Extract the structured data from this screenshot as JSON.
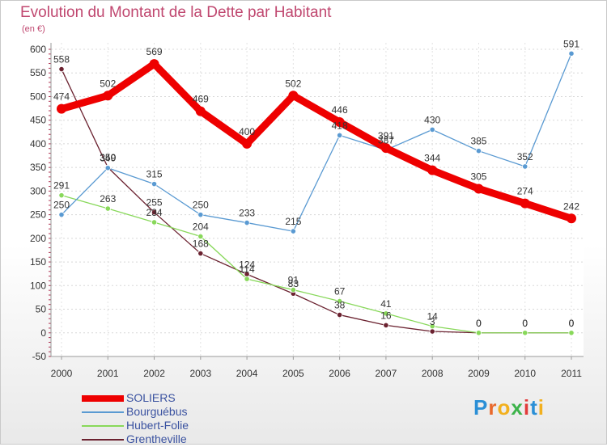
{
  "title": "Evolution du Montant de la Dette par Habitant",
  "unit_label": "(en €)",
  "logo": {
    "text": "Proxiti"
  },
  "chart_data": {
    "type": "line",
    "title": "Evolution du Montant de la Dette par Habitant",
    "ylabel": "(en €)",
    "ylim": [
      -50,
      600
    ],
    "yticks": [
      -50,
      0,
      50,
      100,
      150,
      200,
      250,
      300,
      350,
      400,
      450,
      500,
      550,
      600
    ],
    "categories": [
      "2000",
      "2001",
      "2002",
      "2003",
      "2004",
      "2005",
      "2006",
      "2007",
      "2008",
      "2009",
      "2010",
      "2011"
    ],
    "grid": true,
    "legend_position": "bottom-left",
    "series": [
      {
        "name": "SOLIERS",
        "color": "#ee0000",
        "values": [
          474,
          502,
          569,
          469,
          400,
          502,
          446,
          391,
          344,
          305,
          274,
          242
        ],
        "labels": [
          "474",
          "502",
          "569",
          "469",
          "400",
          "502",
          "446",
          "391",
          "344",
          "305",
          "274",
          "242"
        ]
      },
      {
        "name": "Bourguébus",
        "color": "#5a9ad2",
        "values": [
          250,
          349,
          315,
          250,
          233,
          215,
          418,
          387,
          430,
          385,
          352,
          591
        ],
        "labels": [
          "250",
          "349",
          "315",
          "250",
          "233",
          "215",
          "418",
          "387",
          "430",
          "385",
          "352",
          "591"
        ]
      },
      {
        "name": "Hubert-Folie",
        "color": "#88d85a",
        "values": [
          291,
          263,
          234,
          204,
          114,
          91,
          67,
          41,
          14,
          0,
          0,
          0
        ],
        "labels": [
          "291",
          "263",
          "234",
          "204",
          "114",
          "91",
          "67",
          "41",
          "14",
          "0",
          "0",
          "0"
        ]
      },
      {
        "name": "Grentheville",
        "color": "#6b2230",
        "values": [
          558,
          350,
          255,
          168,
          124,
          83,
          38,
          16,
          3,
          0,
          0,
          0
        ],
        "labels": [
          "558",
          "350",
          "255",
          "168",
          "124",
          "83",
          "38",
          "16",
          "3",
          "0",
          "0",
          "0"
        ]
      }
    ]
  }
}
